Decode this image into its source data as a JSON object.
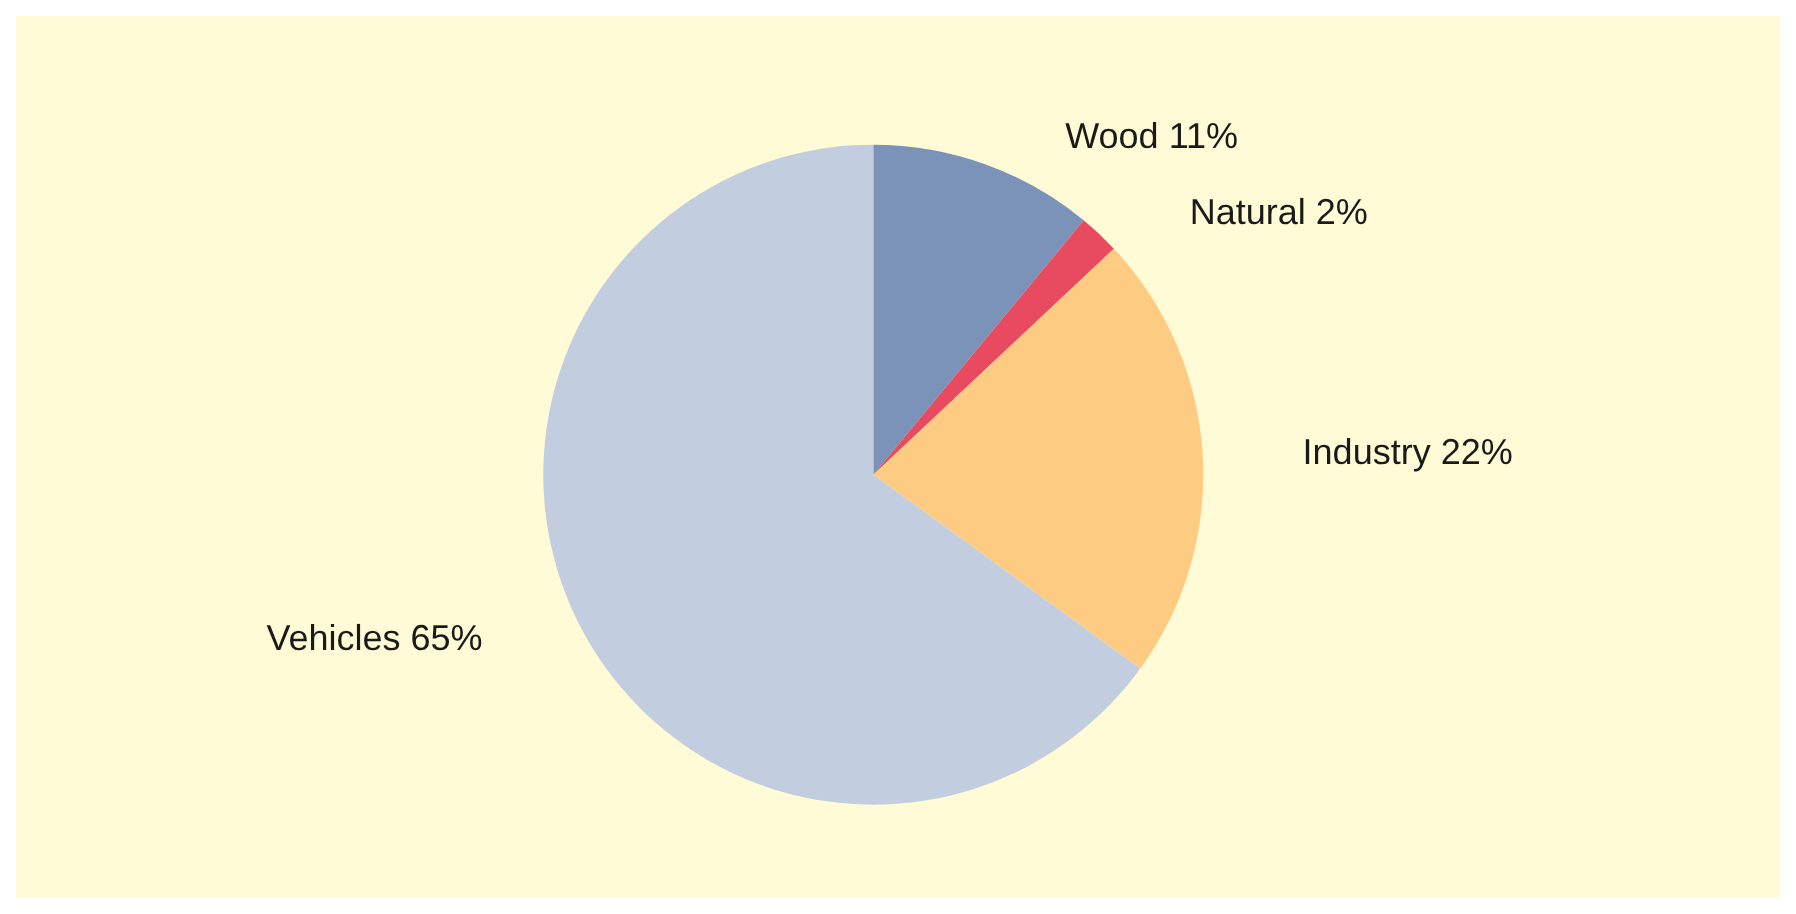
{
  "chart_data": {
    "type": "pie",
    "categories": [
      "Wood",
      "Natural",
      "Industry",
      "Vehicles"
    ],
    "values": [
      11,
      2,
      22,
      65
    ],
    "value_labels": [
      "11%",
      "2%",
      "22%",
      "65%"
    ],
    "colors": [
      "#7b93b8",
      "#e84a5f",
      "#fecb83",
      "#c2cde0"
    ],
    "legend": false
  }
}
